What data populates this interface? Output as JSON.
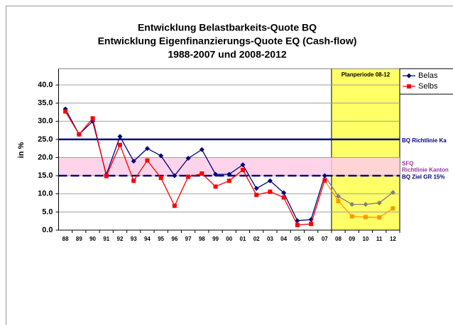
{
  "chart_data": {
    "type": "line",
    "title": [
      "Entwicklung Belastbarkeits-Quote BQ",
      "Entwicklung Eigenfinanzierungs-Quote EQ (Cash-flow)",
      "1988-2007 und 2008-2012"
    ],
    "y_label": "in %",
    "categories": [
      "88",
      "89",
      "90",
      "91",
      "92",
      "93",
      "94",
      "95",
      "96",
      "97",
      "98",
      "99",
      "00",
      "01",
      "02",
      "03",
      "04",
      "05",
      "06",
      "07",
      "08",
      "09",
      "10",
      "11",
      "12"
    ],
    "series": [
      {
        "name": "Belas",
        "color": "#000080",
        "plan_color": "#808080",
        "marker": "diamond",
        "values": [
          33.4,
          26.4,
          30.0,
          15.3,
          25.8,
          19.0,
          22.5,
          20.5,
          15.0,
          19.8,
          22.2,
          15.4,
          15.4,
          18.0,
          11.5,
          13.6,
          10.3,
          2.6,
          2.9,
          15.0,
          9.3,
          7.1,
          7.1,
          7.5,
          10.4
        ]
      },
      {
        "name": "Selbs",
        "color": "#ff0000",
        "plan_color": "#ff9900",
        "marker": "square",
        "values": [
          32.7,
          26.4,
          30.8,
          14.9,
          23.5,
          13.6,
          19.2,
          14.4,
          6.7,
          14.7,
          15.6,
          12.0,
          13.6,
          16.6,
          9.7,
          10.6,
          9.0,
          1.4,
          1.7,
          13.7,
          8.0,
          3.8,
          3.6,
          3.5,
          6.0
        ]
      }
    ],
    "ylim": [
      0,
      44.5
    ],
    "yticks": [
      {
        "value": 0,
        "label": "0.0"
      },
      {
        "value": 5,
        "label": "5.0"
      },
      {
        "value": 10,
        "label": "10.0"
      },
      {
        "value": 15,
        "label": "15.0"
      },
      {
        "value": 20,
        "label": "20.0"
      },
      {
        "value": 25,
        "label": "25.0"
      },
      {
        "value": 30,
        "label": "30.0"
      },
      {
        "value": 35,
        "label": "35.0"
      },
      {
        "value": 40,
        "label": "40.0"
      }
    ],
    "grid": true,
    "legend": "top-right",
    "highlight": {
      "label": "Planperiode 08-12",
      "start": "08",
      "color": "#ffff66"
    },
    "band": {
      "from": 15,
      "to": 20,
      "label": [
        "SFQ",
        "Richtlinie Kanton"
      ],
      "color": "#ffcce8",
      "text_color": "#993399"
    },
    "reference_lines": [
      {
        "value": 25,
        "label": "BQ Richtlinie Ka",
        "color": "#000080",
        "style": "solid"
      },
      {
        "value": 15,
        "label": "BQ Ziel GR 15%",
        "color": "#000080",
        "style": "dashed"
      }
    ]
  }
}
